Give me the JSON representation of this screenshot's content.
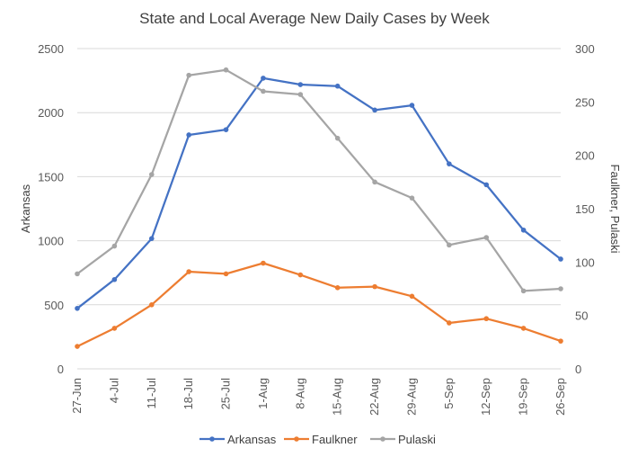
{
  "chart_data": {
    "type": "line",
    "title": "State and Local Average New Daily Cases by Week",
    "categories": [
      "27-Jun",
      "4-Jul",
      "11-Jul",
      "18-Jul",
      "25-Jul",
      "1-Aug",
      "8-Aug",
      "15-Aug",
      "22-Aug",
      "29-Aug",
      "5-Sep",
      "12-Sep",
      "19-Sep",
      "26-Sep"
    ],
    "ylabel": "Arkansas",
    "y2label": "Faulkner, Pulaski",
    "ylim": [
      0,
      2500
    ],
    "y2lim": [
      0,
      300
    ],
    "yticks": [
      "0",
      "500",
      "1000",
      "1500",
      "2000",
      "2500"
    ],
    "y2ticks": [
      "0",
      "50",
      "100",
      "150",
      "200",
      "250",
      "300"
    ],
    "grid": true,
    "legend_position": "bottom",
    "series": [
      {
        "name": "Arkansas",
        "axis": "left",
        "color": "#4472c4",
        "values": [
          472,
          697,
          1017,
          1826,
          1867,
          2269,
          2219,
          2207,
          2020,
          2057,
          1600,
          1437,
          1083,
          857
        ]
      },
      {
        "name": "Faulkner",
        "axis": "right",
        "color": "#ed7d31",
        "values": [
          21,
          38,
          60,
          91,
          89,
          99,
          88,
          76,
          77,
          68,
          43,
          47,
          38,
          26
        ]
      },
      {
        "name": "Pulaski",
        "axis": "right",
        "color": "#a5a5a5",
        "values": [
          89,
          115,
          182,
          275,
          280,
          260,
          257,
          216,
          175,
          160,
          116,
          123,
          73,
          75
        ]
      }
    ]
  }
}
